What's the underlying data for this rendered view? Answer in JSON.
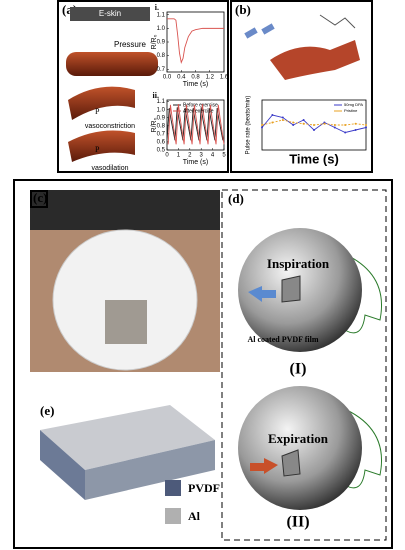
{
  "figure": {
    "panel_a": {
      "label": "(a)",
      "eskin": "E-skin",
      "pressure": "Pressure",
      "p_top": "P",
      "p_bottom": "P",
      "vasoconstriction": "vasoconstriction",
      "vasodilation": "vasodilation"
    },
    "panel_b": {
      "label": "(b)"
    },
    "panel_c": {
      "label": "(c)"
    },
    "panel_d": {
      "label": "(d)",
      "inspiration": "Inspiration",
      "film": "Al coated PVDF film",
      "numeral_1": "(I)",
      "expiration": "Expiration",
      "numeral_2": "(II)"
    },
    "panel_e": {
      "label": "(e)",
      "legend": [
        "PVDF",
        "Al"
      ]
    }
  },
  "chart_data": [
    {
      "type": "line",
      "label": "i.",
      "y_label": "R/R₀",
      "x_label": "Time (s)",
      "xlim": [
        0,
        1.6
      ],
      "ylim": [
        0.68,
        1.12
      ],
      "xticks": [
        {
          "value": 0,
          "label": "0.0"
        },
        0.4,
        0.8,
        1.2,
        1.6
      ],
      "yticks": [
        1.1,
        {
          "value": 1,
          "label": "1.0"
        },
        0.9,
        0.8,
        0.7
      ],
      "series": [
        {
          "color": "#d9534f",
          "x": [
            0,
            0.1,
            0.2,
            0.25,
            0.3,
            0.35,
            0.4,
            0.45,
            0.5,
            0.6,
            0.7,
            0.8,
            1.0,
            1.2,
            1.4,
            1.6
          ],
          "values": [
            1.07,
            1.07,
            1.07,
            1.06,
            0.95,
            0.82,
            0.75,
            0.78,
            0.86,
            0.94,
            0.98,
            0.99,
            1.0,
            1.0,
            1.0,
            1.0
          ]
        }
      ]
    },
    {
      "type": "line",
      "label": "ii.",
      "y_label": "R/R₀",
      "x_label": "Time (s)",
      "xlim": [
        0,
        5
      ],
      "ylim": [
        0.5,
        1.12
      ],
      "xticks": [
        0,
        1,
        2,
        3,
        4,
        5
      ],
      "yticks": [
        1.1,
        {
          "value": 1,
          "label": "1.0"
        },
        0.9,
        0.8,
        0.7,
        0.6,
        0.5
      ],
      "series": [
        {
          "name": "Before exercise",
          "color": "#222222",
          "x": [
            0,
            0.2,
            0.35,
            0.7,
            0.9,
            1.05,
            1.4,
            1.6,
            1.75,
            2.1,
            2.3,
            2.45,
            2.8,
            3.0,
            3.15,
            3.5,
            3.7,
            3.85,
            4.2,
            4.4,
            4.55,
            4.9
          ],
          "values": [
            0.62,
            1.02,
            0.88,
            0.62,
            1.03,
            0.88,
            0.62,
            1.02,
            0.88,
            0.62,
            1.02,
            0.88,
            0.62,
            1.03,
            0.88,
            0.62,
            1.02,
            0.88,
            0.62,
            1.02,
            0.88,
            0.62
          ]
        },
        {
          "name": "After exercise",
          "color": "#d9534f",
          "x": [
            0.1,
            0.3,
            0.45,
            0.8,
            1.0,
            1.15,
            1.5,
            1.7,
            1.85,
            2.2,
            2.4,
            2.55,
            2.9,
            3.1,
            3.25,
            3.6,
            3.8,
            3.95,
            4.3,
            4.5,
            4.65,
            5.0
          ],
          "values": [
            0.57,
            1.06,
            0.9,
            0.57,
            1.07,
            0.9,
            0.57,
            1.06,
            0.9,
            0.57,
            1.06,
            0.9,
            0.57,
            1.07,
            0.9,
            0.57,
            1.06,
            0.9,
            0.57,
            1.06,
            0.9,
            0.57
          ]
        }
      ]
    },
    {
      "type": "line",
      "y_label": "Pulse rate (beats/min)",
      "x_label": "Time (s)",
      "xlim": [
        0,
        20
      ],
      "ylim": [
        70,
        110
      ],
      "series": [
        {
          "name": "50mg DPA",
          "color": "#3a3ac8",
          "x": [
            0,
            2,
            4,
            6,
            8,
            10,
            12,
            14,
            16,
            18,
            20
          ],
          "values": [
            88,
            98,
            96,
            90,
            94,
            86,
            92,
            88,
            84,
            86,
            88
          ]
        },
        {
          "name": "Pristine",
          "color": "#e8a020",
          "x": [
            0,
            2,
            4,
            6,
            8,
            10,
            12,
            14,
            16,
            18,
            20
          ],
          "values": [
            90,
            92,
            94,
            92,
            91,
            90,
            91,
            90,
            90,
            91,
            90
          ]
        }
      ]
    }
  ]
}
